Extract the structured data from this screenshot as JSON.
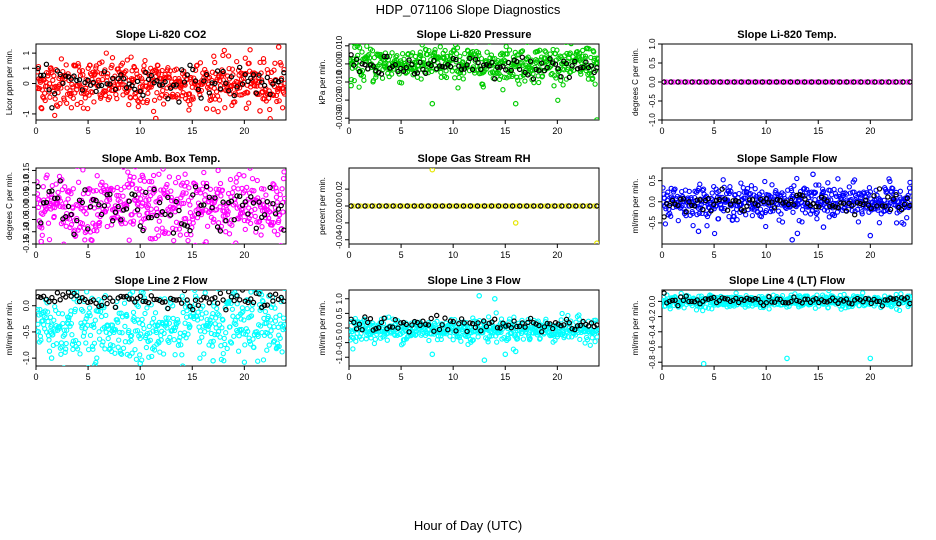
{
  "window": {
    "title": "HDP_071106  Slope Diagnostics",
    "xlabel": "Hour of Day (UTC)"
  },
  "chart_data": [
    {
      "type": "scatter",
      "title": "Slope Li-820 CO2",
      "ylabel": "Licor ppm per min.",
      "xlim": [
        0,
        24
      ],
      "xticks": [
        0,
        5,
        10,
        15,
        20
      ],
      "ylim": [
        -1.2,
        1.3
      ],
      "yticks": [
        -1.0,
        0.0,
        0.5,
        1.0
      ],
      "color": "#ff0000",
      "center": 0.0,
      "spread": 0.4,
      "secondary": {
        "color": "#000000",
        "center": 0.05,
        "spread": 0.25
      },
      "outliers": [
        [
          23.3,
          1.2
        ],
        [
          11.5,
          -1.15
        ],
        [
          0.5,
          -0.8
        ],
        [
          21.5,
          -0.9
        ]
      ]
    },
    {
      "type": "scatter",
      "title": "Slope Li-820 Pressure",
      "ylabel": "kPa per min.",
      "xlim": [
        0,
        24
      ],
      "xticks": [
        0,
        5,
        10,
        15,
        20
      ],
      "ylim": [
        -0.031,
        0.011
      ],
      "yticks": [
        -0.03,
        -0.02,
        -0.01,
        0.0,
        0.01
      ],
      "color": "#00cc00",
      "center": 0.0,
      "spread": 0.005,
      "secondary": {
        "color": "#000000",
        "center": -0.002,
        "spread": 0.003
      },
      "outliers": [
        [
          22.8,
          0.0085
        ],
        [
          8.0,
          -0.022
        ],
        [
          16.0,
          -0.022
        ],
        [
          23.8,
          -0.031
        ],
        [
          0.2,
          -0.012
        ]
      ]
    },
    {
      "type": "scatter",
      "title": "Slope Li-820 Temp.",
      "ylabel": "degrees C per min.",
      "xlim": [
        0,
        24
      ],
      "xticks": [
        0,
        5,
        10,
        15,
        20
      ],
      "ylim": [
        -1.0,
        1.0
      ],
      "yticks": [
        -1.0,
        -0.5,
        0.0,
        0.5,
        1.0
      ],
      "color": "#ff00ff",
      "center": 0.0,
      "spread": 0.0,
      "secondary": {
        "color": "#000000",
        "center": 0.0,
        "spread": 0.0
      },
      "outliers": []
    },
    {
      "type": "scatter",
      "title": "Slope Amb. Box Temp.",
      "ylabel": "degrees C per min.",
      "xlim": [
        0,
        24
      ],
      "xticks": [
        0,
        5,
        10,
        15,
        20
      ],
      "ylim": [
        -0.15,
        0.16
      ],
      "yticks": [
        -0.15,
        -0.1,
        -0.05,
        0.0,
        0.05,
        0.1,
        0.15
      ],
      "color": "#ff00ff",
      "center": 0.0,
      "spread": 0.07,
      "secondary": {
        "color": "#000000",
        "center": 0.0,
        "spread": 0.05
      },
      "outliers": [
        [
          10.2,
          0.13
        ],
        [
          0.5,
          -0.14
        ]
      ]
    },
    {
      "type": "scatter",
      "title": "Slope Gas Stream RH",
      "ylabel": "percent per min.",
      "xlim": [
        0,
        24
      ],
      "xticks": [
        0,
        5,
        10,
        15,
        20
      ],
      "ylim": [
        -0.045,
        0.045
      ],
      "yticks": [
        -0.04,
        -0.02,
        0.0,
        0.02
      ],
      "color": "#ffff00",
      "center": 0.0,
      "spread": 0.0,
      "secondary": {
        "color": "#000000",
        "center": 0.0,
        "spread": 0.0
      },
      "outliers": [
        [
          8.0,
          0.043
        ],
        [
          16.0,
          -0.02
        ],
        [
          23.8,
          -0.044
        ]
      ]
    },
    {
      "type": "scatter",
      "title": "Slope Sample Flow",
      "ylabel": "ml/min per min.",
      "xlim": [
        0,
        24
      ],
      "xticks": [
        0,
        5,
        10,
        15,
        20
      ],
      "ylim": [
        -1.0,
        0.8
      ],
      "yticks": [
        -0.5,
        0.0,
        0.5
      ],
      "color": "#0000ff",
      "center": 0.0,
      "spread": 0.2,
      "secondary": {
        "color": "#000000",
        "center": -0.05,
        "spread": 0.12
      },
      "outliers": [
        [
          14.5,
          0.65
        ],
        [
          13.0,
          -0.75
        ],
        [
          15.5,
          -0.6
        ],
        [
          20.0,
          -0.8
        ],
        [
          3.5,
          -0.7
        ],
        [
          12.5,
          -0.9
        ]
      ]
    },
    {
      "type": "scatter",
      "title": "Slope Line 2 Flow",
      "ylabel": "ml/min per min.",
      "xlim": [
        0,
        24
      ],
      "xticks": [
        0,
        5,
        10,
        15,
        20
      ],
      "ylim": [
        -1.15,
        0.3
      ],
      "yticks": [
        -1.0,
        -0.5,
        0.0
      ],
      "color": "#00ffff",
      "center": -0.4,
      "spread": 0.35,
      "secondary": {
        "color": "#000000",
        "center": 0.12,
        "spread": 0.08
      },
      "outliers": [
        [
          21.5,
          0.25
        ],
        [
          10.0,
          -1.1
        ],
        [
          1.5,
          -1.0
        ],
        [
          17.0,
          -1.05
        ]
      ]
    },
    {
      "type": "scatter",
      "title": "Slope Line 3 Flow",
      "ylabel": "ml/min per min.",
      "xlim": [
        0,
        24
      ],
      "xticks": [
        0,
        5,
        10,
        15,
        20
      ],
      "ylim": [
        -1.3,
        1.3
      ],
      "yticks": [
        -1.0,
        -0.5,
        0.0,
        0.5,
        1.0
      ],
      "color": "#00ffff",
      "center": -0.05,
      "spread": 0.2,
      "secondary": {
        "color": "#000000",
        "center": 0.1,
        "spread": 0.15
      },
      "outliers": [
        [
          12.5,
          1.1
        ],
        [
          13.0,
          -1.1
        ],
        [
          14.0,
          1.0
        ],
        [
          15.0,
          -0.9
        ],
        [
          8.0,
          -0.9
        ],
        [
          16.0,
          -0.8
        ]
      ]
    },
    {
      "type": "scatter",
      "title": "Slope Line 4 (LT) Flow",
      "ylabel": "ml/min per min.",
      "xlim": [
        0,
        24
      ],
      "xticks": [
        0,
        5,
        10,
        15,
        20
      ],
      "ylim": [
        -0.85,
        0.15
      ],
      "yticks": [
        -0.8,
        -0.6,
        -0.4,
        -0.2,
        0.0
      ],
      "color": "#00ffff",
      "center": 0.0,
      "spread": 0.04,
      "secondary": {
        "color": "#000000",
        "center": 0.01,
        "spread": 0.03
      },
      "outliers": [
        [
          4.0,
          -0.82
        ],
        [
          12.0,
          -0.75
        ],
        [
          20.0,
          -0.75
        ]
      ]
    }
  ]
}
